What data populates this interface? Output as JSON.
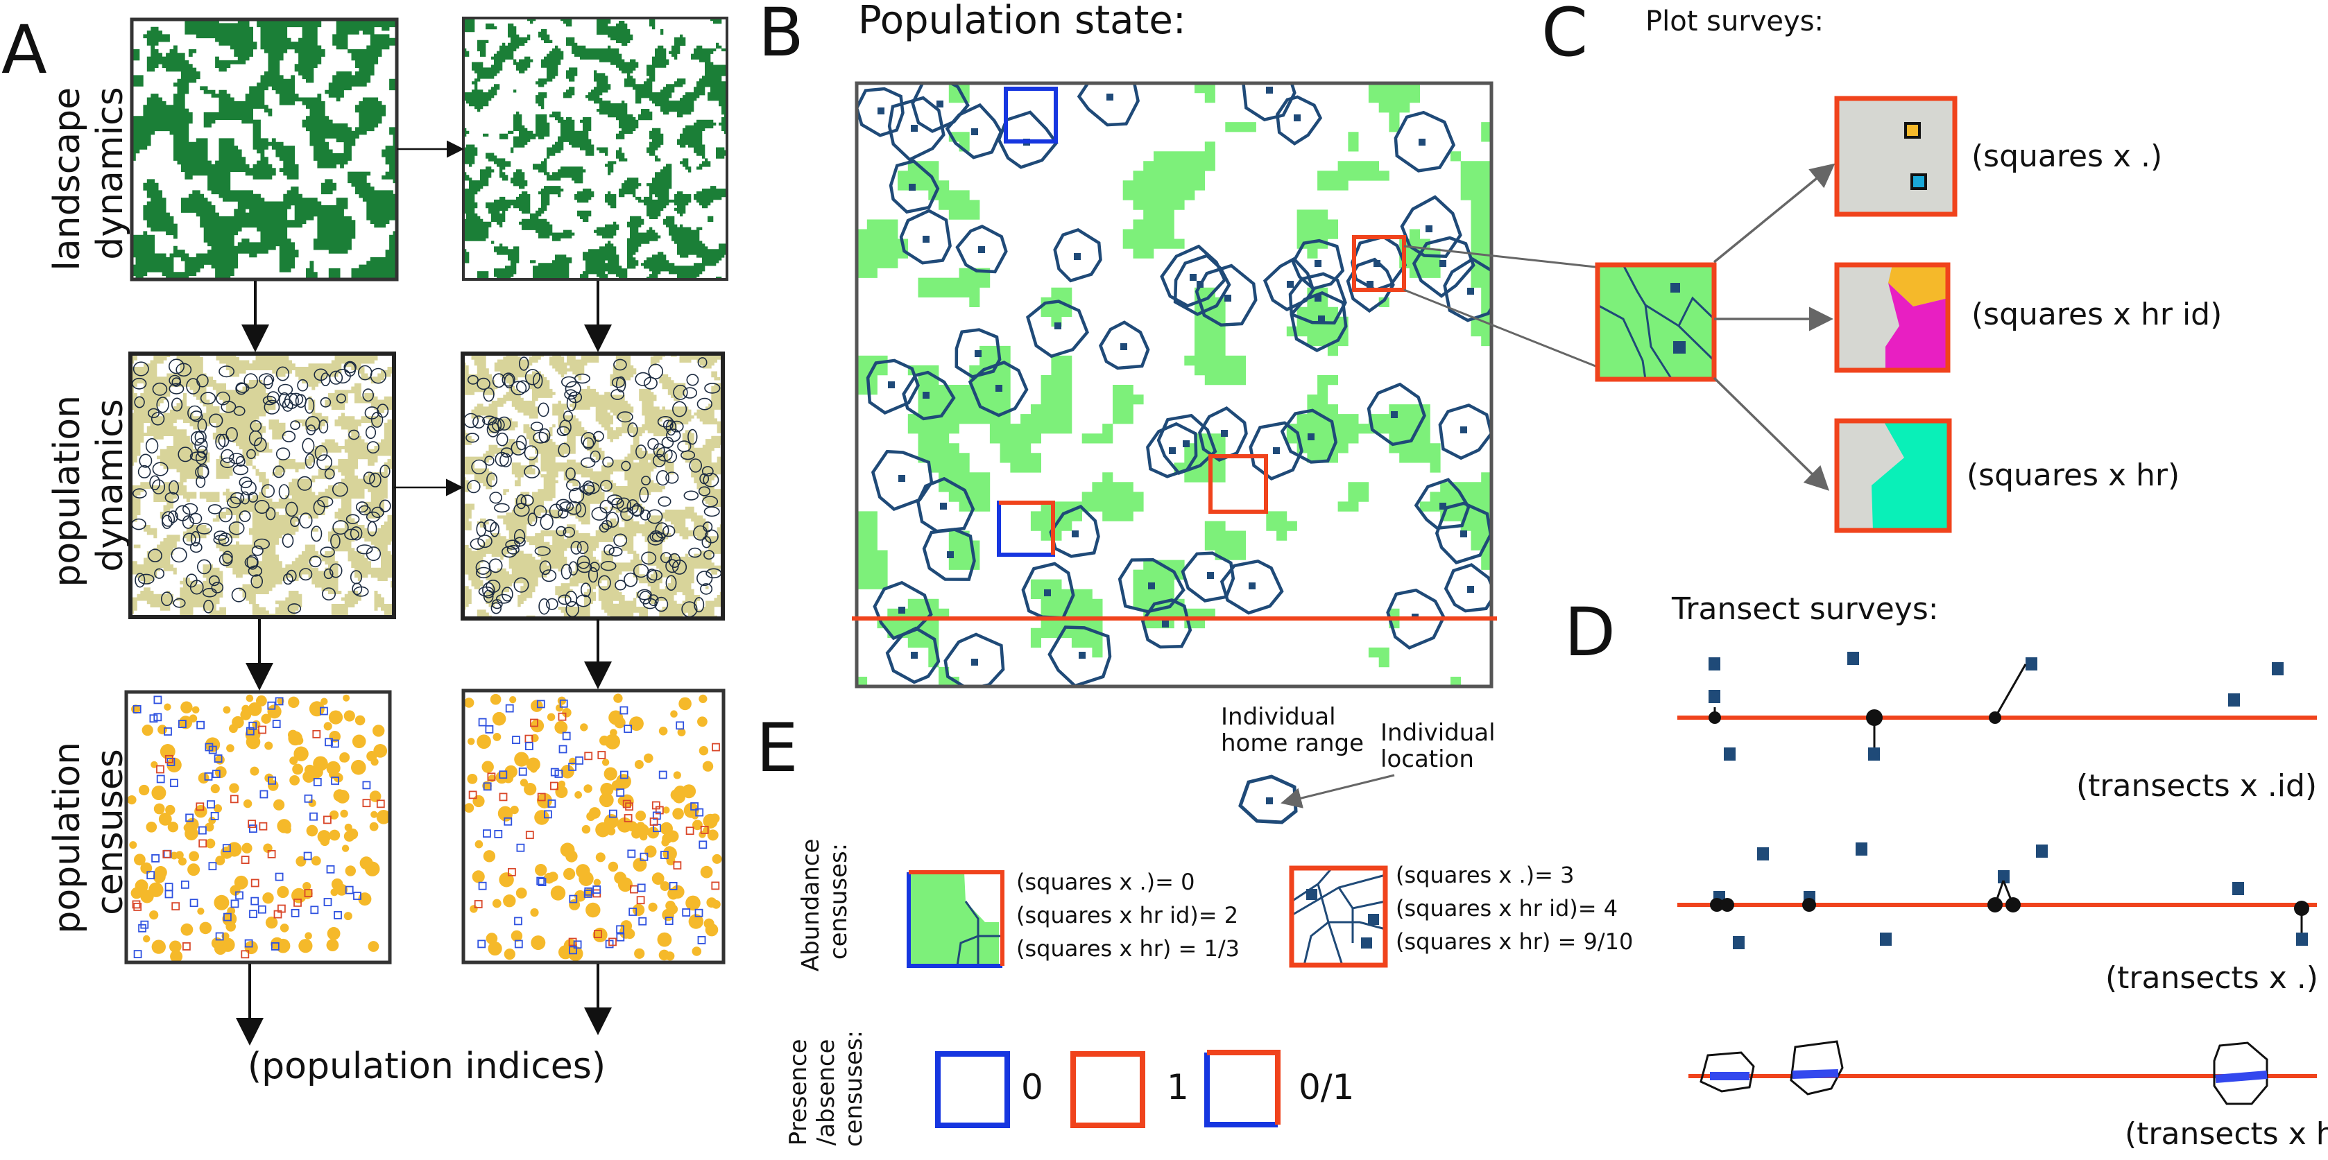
{
  "colors": {
    "forest": "#1b7f37",
    "habitat": "#d8d49a",
    "census_orange": "#f5b92a",
    "green_habitat": "#7df07a",
    "home_range": "#1f4a78",
    "transect": "#f0431c",
    "blue_square": "#1636e0",
    "gray_fill": "#d6d7d2",
    "magenta": "#e81fc2",
    "teal": "#09f0b8"
  },
  "panelA": {
    "letter": "A",
    "row_labels": [
      "landscape dynamics",
      "population dynamics",
      "population censuses"
    ],
    "footer": "(population indices)"
  },
  "panelB": {
    "letter": "B",
    "title": "Population state:",
    "legend_home_range": [
      "Individual",
      "home range"
    ],
    "legend_location": [
      "Individual",
      "location"
    ]
  },
  "panelC": {
    "letter": "C",
    "title": "Plot surveys:",
    "items": [
      "(squares x .)",
      "(squares x hr id)",
      "(squares x hr)"
    ]
  },
  "panelD": {
    "letter": "D",
    "title": "Transect surveys:",
    "items": [
      "(transects x .id)",
      "(transects x .)",
      "(transects x hr)"
    ]
  },
  "panelE": {
    "letter": "E",
    "abundance_label": [
      "Abundance",
      "censuses:"
    ],
    "presence_label": [
      "Presence",
      "/absence",
      "censuses:"
    ],
    "left_values": [
      "(squares x .)= 0",
      "(squares x hr id)= 2",
      "(squares x hr) = 1/3"
    ],
    "right_values": [
      "(squares x .)= 3",
      "(squares x hr id)= 4",
      "(squares x hr) = 9/10"
    ],
    "presence_values": [
      "0",
      "1",
      "0/1"
    ]
  }
}
